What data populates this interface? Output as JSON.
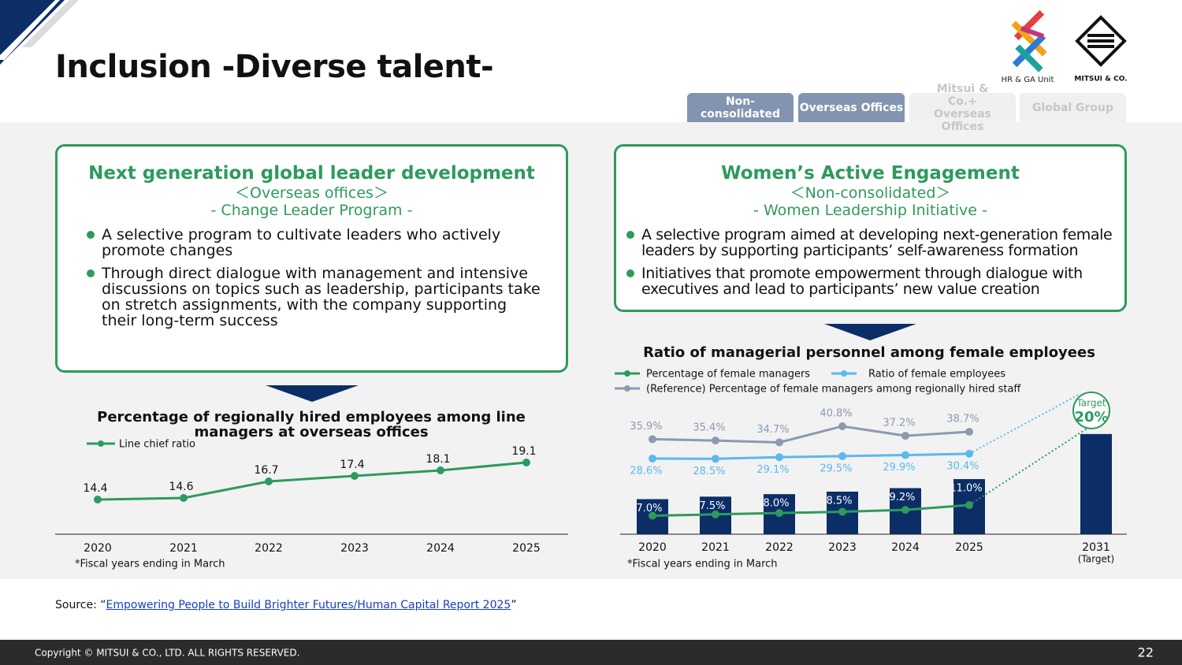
{
  "header": {
    "title": "Inclusion -Diverse talent-",
    "logo_unit": "HR & GA Unit",
    "logo_company": "MITSUI & CO."
  },
  "tabs": [
    "Non-consolidated",
    "Overseas Offices",
    "Mitsui & Co.+ Overseas Offices",
    "Global Group"
  ],
  "left_panel": {
    "title": "Next generation global leader development",
    "subtitle": "＜Overseas offices＞",
    "program": "- Change Leader Program -",
    "bullets": [
      "A selective program to cultivate leaders who actively promote changes",
      "Through direct dialogue with management and intensive discussions on topics such as leadership, participants take on stretch assignments, with the company supporting their long-term success"
    ]
  },
  "right_panel": {
    "title": "Women’s Active Engagement",
    "subtitle": "＜Non-consolidated＞",
    "program": "- Women Leadership Initiative -",
    "bullets": [
      "A selective program aimed at developing next-generation female leaders by supporting participants’ self-awareness formation",
      "Initiatives that promote empowerment through dialogue with executives and lead to participants’ new value creation"
    ]
  },
  "left_chart": {
    "type": "line",
    "title": "Percentage of regionally hired employees among line managers at overseas offices",
    "categories": [
      "2020",
      "2021",
      "2022",
      "2023",
      "2024",
      "2025"
    ],
    "series": [
      {
        "name": "Line chief ratio",
        "color": "#2e9a5e",
        "values": [
          14.4,
          14.6,
          16.7,
          17.4,
          18.1,
          19.1
        ]
      }
    ],
    "ylim": [
      10,
      21
    ],
    "note": "*Fiscal years ending in March"
  },
  "right_chart": {
    "type": "bar_line",
    "title": "Ratio of managerial personnel among female employees",
    "categories": [
      "2020",
      "2021",
      "2022",
      "2023",
      "2024",
      "2025",
      "2031"
    ],
    "target_note": "(Target)",
    "target_callout": "Target",
    "bars": {
      "color": "#0b2e66",
      "values": [
        7.0,
        7.5,
        8.0,
        8.5,
        9.2,
        11.0,
        20
      ],
      "value_labels": [
        "7.0%",
        "7.5%",
        "8.0%",
        "8.5%",
        "9.2%",
        "11.0%",
        "20%"
      ]
    },
    "series": [
      {
        "name": "Percentage of female managers",
        "color": "#2e9a5e",
        "axis": "y2",
        "values": [
          7.0,
          7.5,
          8.0,
          8.5,
          9.2,
          11.0,
          null
        ]
      },
      {
        "name": "Ratio of female employees",
        "color": "#5cb8ee",
        "axis": "y2",
        "values": [
          28.6,
          28.5,
          29.1,
          29.5,
          29.9,
          30.4,
          null
        ],
        "value_labels": [
          "28.6%",
          "28.5%",
          "29.1%",
          "29.5%",
          "29.9%",
          "30.4%",
          null
        ]
      },
      {
        "name": "(Reference) Percentage of female managers among regionally hired staff",
        "color": "#8b9ab1",
        "axis": "y2",
        "values": [
          35.9,
          35.4,
          34.7,
          40.8,
          37.2,
          38.7,
          null
        ],
        "value_labels": [
          "35.9%",
          "35.4%",
          "34.7%",
          "40.8%",
          "37.2%",
          "38.7%",
          null
        ]
      }
    ],
    "ylim": [
      0,
      28
    ],
    "y2lim": [
      0,
      53
    ],
    "note": "*Fiscal years ending in March"
  },
  "source": {
    "prefix": "Source: “",
    "link": "Empowering People to Build Brighter Futures/Human Capital Report 2025",
    "suffix": "”"
  },
  "footer": {
    "copyright": "Copyright © MITSUI & CO., LTD. ALL RIGHTS RESERVED.",
    "page": "22"
  }
}
